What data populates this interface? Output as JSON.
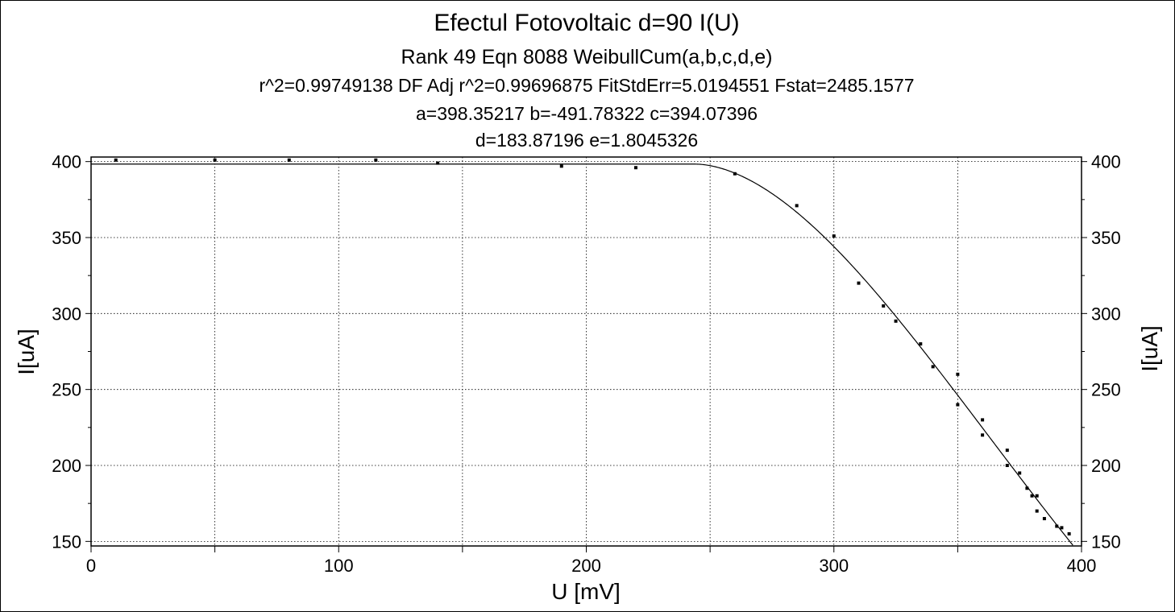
{
  "chart_data": {
    "type": "scatter",
    "title": "Efectul Fotovoltaic d=90 I(U)",
    "subtitle": "Rank 49  Eqn 8088  WeibullCum(a,b,c,d,e)",
    "fit_stats": "r^2=0.99749138  DF Adj r^2=0.99696875  FitStdErr=5.0194551  Fstat=2485.1577",
    "params_line1": "a=398.35217 b=-491.78322 c=394.07396",
    "params_line2": "d=183.87196 e=1.8045326",
    "xlabel": "U [mV]",
    "ylabel": "I[uA]",
    "ylabel_right": "I[uA]",
    "xlim": [
      0,
      400
    ],
    "ylim": [
      147,
      403
    ],
    "x_ticks": [
      0,
      100,
      200,
      300,
      400
    ],
    "y_ticks": [
      150,
      200,
      250,
      300,
      350,
      400
    ],
    "grid": true,
    "points": [
      [
        10,
        401
      ],
      [
        50,
        401
      ],
      [
        80,
        401
      ],
      [
        115,
        401
      ],
      [
        140,
        399
      ],
      [
        190,
        397
      ],
      [
        220,
        396
      ],
      [
        260,
        392
      ],
      [
        285,
        371
      ],
      [
        300,
        351
      ],
      [
        310,
        320
      ],
      [
        320,
        305
      ],
      [
        325,
        295
      ],
      [
        335,
        280
      ],
      [
        340,
        265
      ],
      [
        350,
        260
      ],
      [
        350,
        240
      ],
      [
        360,
        230
      ],
      [
        360,
        220
      ],
      [
        370,
        210
      ],
      [
        370,
        200
      ],
      [
        375,
        195
      ],
      [
        378,
        185
      ],
      [
        380,
        180
      ],
      [
        382,
        180
      ],
      [
        382,
        170
      ],
      [
        385,
        165
      ],
      [
        390,
        160
      ],
      [
        392,
        159
      ],
      [
        395,
        155
      ]
    ],
    "fit": {
      "model": "WeibullCum",
      "a": 398.35217,
      "b": -491.78322,
      "c": 394.07396,
      "d": 183.87196,
      "e": 1.8045326
    }
  }
}
